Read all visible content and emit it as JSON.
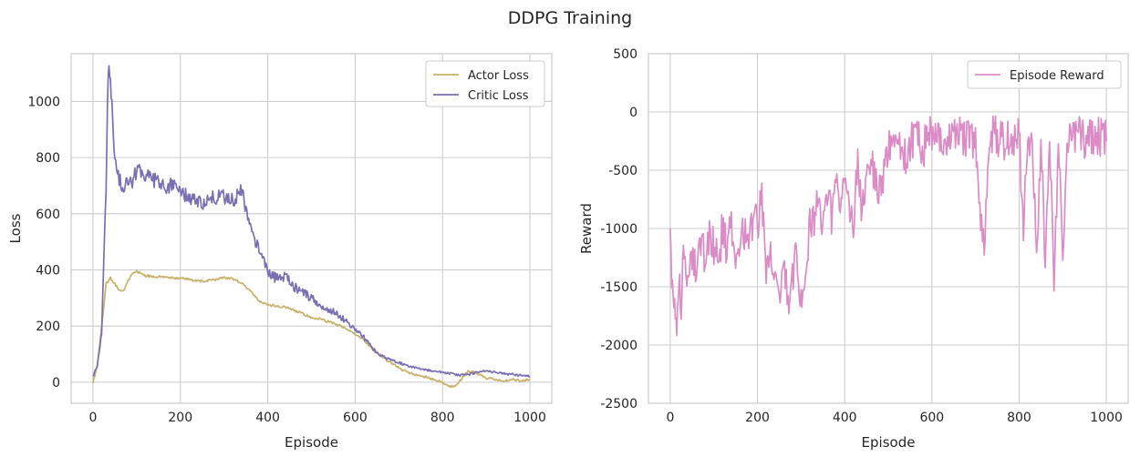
{
  "figure": {
    "suptitle": "DDPG Training"
  },
  "colors": {
    "actor": "#c8b16a",
    "critic": "#7b6fb4",
    "reward": "#db8cc6",
    "grid": "#cccccc"
  },
  "chart_data": [
    {
      "type": "line",
      "xlabel": "Episode",
      "ylabel": "Loss",
      "xlim": [
        -50,
        1050
      ],
      "ylim": [
        -75,
        1170
      ],
      "xticks": [
        0,
        200,
        400,
        600,
        800,
        1000
      ],
      "yticks": [
        0,
        200,
        400,
        600,
        800,
        1000
      ],
      "grid": true,
      "legend": "top-right",
      "series": [
        {
          "name": "Actor Loss",
          "color": "#c8b16a",
          "x": [
            0,
            10,
            20,
            30,
            40,
            50,
            60,
            70,
            80,
            90,
            100,
            120,
            140,
            160,
            180,
            200,
            220,
            240,
            260,
            280,
            300,
            320,
            340,
            360,
            380,
            400,
            420,
            440,
            460,
            480,
            500,
            520,
            540,
            560,
            580,
            600,
            620,
            640,
            660,
            680,
            700,
            720,
            740,
            760,
            780,
            800,
            810,
            820,
            830,
            840,
            850,
            860,
            880,
            900,
            920,
            940,
            960,
            980,
            1000
          ],
          "y": [
            0,
            60,
            200,
            350,
            370,
            350,
            330,
            325,
            360,
            390,
            395,
            380,
            375,
            377,
            372,
            370,
            368,
            360,
            362,
            365,
            372,
            368,
            355,
            325,
            290,
            275,
            272,
            268,
            255,
            245,
            228,
            225,
            215,
            205,
            190,
            172,
            150,
            120,
            95,
            70,
            50,
            35,
            25,
            20,
            10,
            0,
            -10,
            -15,
            -15,
            5,
            25,
            40,
            30,
            15,
            10,
            5,
            10,
            5,
            10
          ]
        },
        {
          "name": "Critic Loss",
          "color": "#7b6fb4",
          "x": [
            0,
            10,
            20,
            30,
            35,
            40,
            45,
            50,
            60,
            70,
            80,
            90,
            100,
            120,
            140,
            160,
            180,
            200,
            220,
            240,
            260,
            280,
            300,
            320,
            340,
            360,
            380,
            400,
            420,
            440,
            460,
            480,
            500,
            520,
            540,
            560,
            580,
            600,
            620,
            640,
            660,
            680,
            700,
            720,
            740,
            760,
            780,
            800,
            820,
            840,
            860,
            880,
            900,
            920,
            940,
            960,
            980,
            1000
          ],
          "y": [
            20,
            60,
            180,
            700,
            1120,
            1080,
            950,
            800,
            720,
            690,
            710,
            700,
            760,
            740,
            720,
            700,
            700,
            680,
            660,
            650,
            640,
            660,
            660,
            650,
            680,
            550,
            470,
            390,
            370,
            380,
            340,
            320,
            300,
            270,
            260,
            240,
            215,
            190,
            160,
            120,
            95,
            80,
            70,
            60,
            50,
            45,
            40,
            35,
            30,
            25,
            28,
            35,
            40,
            35,
            30,
            28,
            25,
            20
          ]
        }
      ]
    },
    {
      "type": "line",
      "xlabel": "Episode",
      "ylabel": "Reward",
      "xlim": [
        -50,
        1050
      ],
      "ylim": [
        -2500,
        500
      ],
      "xticks": [
        0,
        200,
        400,
        600,
        800,
        1000
      ],
      "yticks": [
        -2500,
        -2000,
        -1500,
        -1000,
        -500,
        0,
        500
      ],
      "grid": true,
      "legend": "top-right",
      "series": [
        {
          "name": "Episode Reward",
          "color": "#db8cc6",
          "x": [
            0,
            5,
            10,
            15,
            20,
            25,
            30,
            40,
            50,
            60,
            70,
            80,
            90,
            100,
            110,
            120,
            130,
            140,
            150,
            160,
            170,
            180,
            190,
            200,
            210,
            220,
            230,
            240,
            250,
            260,
            270,
            280,
            290,
            300,
            310,
            320,
            330,
            340,
            350,
            360,
            370,
            380,
            390,
            400,
            410,
            420,
            430,
            440,
            450,
            460,
            480,
            500,
            520,
            540,
            560,
            580,
            600,
            620,
            640,
            660,
            680,
            700,
            710,
            720,
            730,
            740,
            760,
            780,
            800,
            810,
            820,
            830,
            840,
            850,
            860,
            870,
            880,
            890,
            900,
            910,
            920,
            940,
            960,
            980,
            1000
          ],
          "y": [
            -1000,
            -1500,
            -1600,
            -1850,
            -1400,
            -1700,
            -1300,
            -1500,
            -1200,
            -1400,
            -1100,
            -1300,
            -1000,
            -1200,
            -1300,
            -1000,
            -1200,
            -900,
            -1300,
            -1100,
            -1000,
            -1100,
            -900,
            -1000,
            -700,
            -1300,
            -1100,
            -1400,
            -1500,
            -1300,
            -1600,
            -1400,
            -1200,
            -1600,
            -1300,
            -1000,
            -900,
            -800,
            -1100,
            -700,
            -900,
            -600,
            -1000,
            -500,
            -700,
            -1100,
            -400,
            -900,
            -600,
            -400,
            -700,
            -300,
            -250,
            -400,
            -200,
            -300,
            -200,
            -250,
            -200,
            -220,
            -200,
            -250,
            -800,
            -1200,
            -300,
            -200,
            -250,
            -200,
            -180,
            -1000,
            -300,
            -200,
            -1200,
            -250,
            -1300,
            -200,
            -1400,
            -300,
            -1200,
            -250,
            -200,
            -220,
            -250,
            -200,
            -250
          ]
        }
      ]
    }
  ]
}
